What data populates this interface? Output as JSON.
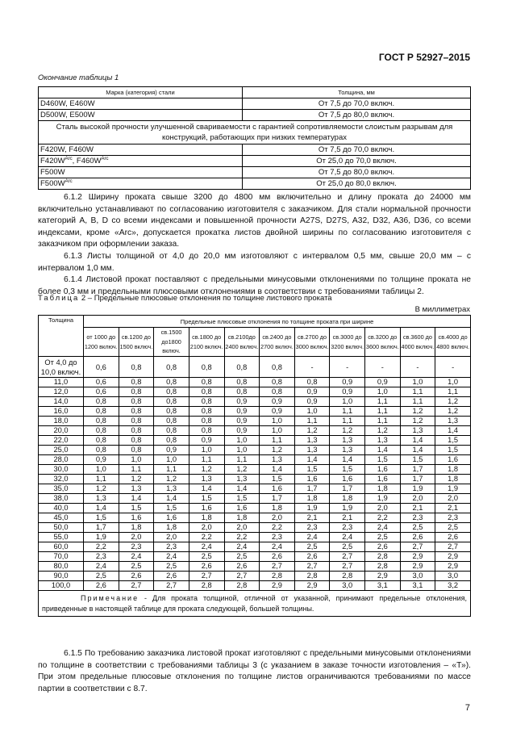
{
  "header": {
    "doc_id": "ГОСТ Р 52927–2015"
  },
  "table1": {
    "caption": "Окончание таблицы 1",
    "headers": [
      "Марка (категория) стали",
      "Толщина, мм"
    ],
    "rows": [
      {
        "grade": "D460W, E460W",
        "thickness": "От 7,5 до 70,0 включ."
      },
      {
        "grade": "D500W, E500W",
        "thickness": "От 7,5 до 80,0 включ."
      }
    ],
    "section": "Сталь высокой прочности улучшенной свариваемости с гарантией сопротивляемости слоистым разрывам для конструкций, работающих при низких температурах",
    "rows2": [
      {
        "grade": "F420W, F460W",
        "thickness": "От 7,5 до 70,0 включ."
      },
      {
        "grade_a": "F420W",
        "sup_a": "Arc",
        "sep": ", ",
        "grade_b": "F460W",
        "sup_b": "Arc",
        "thickness": "От 25,0 до 70,0 включ."
      },
      {
        "grade": "F500W",
        "thickness": "От 7,5 до 80,0 включ."
      },
      {
        "grade": "F500W",
        "sup": "Arc",
        "thickness": "От 25,0 до 80,0 включ."
      }
    ]
  },
  "paragraphs": {
    "p612": "6.1.2 Ширину проката свыше 3200 до 4800 мм включительно и длину проката до 24000 мм включительно устанавливают по согласованию изготовителя с заказчиком. Для стали нормальной прочности категорий A, B, D со всеми индексами и повышенной прочности A27S, D27S, A32, D32, A36, D36, со всеми индексами, кроме «Arc», допускается прокатка листов двойной ширины по согласованию изготовителя с заказчиком при оформлении заказа.",
    "p613": "6.1.3 Листы толщиной от 4,0 до 20,0 мм изготовляют с интервалом 0,5 мм, свыше 20,0 мм – с интервалом 1,0 мм.",
    "p614": "6.1.4 Листовой прокат поставляют с предельными минусовыми отклонениями по толщине проката не более 0,3 мм и предельными плюсовыми отклонениями в соответствии с требованиями таблицы 2.",
    "p615": "6.1.5 По требованию заказчика листовой прокат изготовляют с предельными минусовыми отклонениями по толщине в соответствии с требованиями таблицы 3 (с указанием в заказе точности изготовления – «Т»). При этом предельные плюсовые отклонения по толщине листов ограничиваются требованиями по массе партии в соответствии с 8.7."
  },
  "table2": {
    "caption_label": "Таблица",
    "caption_text": " 2 – Предельные плюсовые отклонения по толщине листового проката",
    "unit": "В миллиметрах",
    "col_thickness": "Толщина",
    "col_group": "Предельные плюсовые отклонения по толщине проката при ширине",
    "widths": [
      "от 1000 до 1200 включ.",
      "св.1200 до 1500 включ.",
      "св.1500 до1800 включ.",
      "св.1800 до 2100 включ.",
      "св.2100до 2400 включ.",
      "св.2400 до 2700 включ.",
      "св.2700 до 3000 включ.",
      "св.3000 до 3200 включ.",
      "св.3200 до 3600 включ.",
      "св.3600 до 4000 включ.",
      "св.4000 до 4800 включ."
    ],
    "rows": [
      [
        "От 4,0 до 10,0 включ.",
        "0,6",
        "0,8",
        "0,8",
        "0,8",
        "0,8",
        "0,8",
        "-",
        "-",
        "-",
        "-",
        "-"
      ],
      [
        "11,0",
        "0,6",
        "0,8",
        "0,8",
        "0,8",
        "0,8",
        "0,8",
        "0,8",
        "0,9",
        "0,9",
        "1,0",
        "1,0"
      ],
      [
        "12,0",
        "0,6",
        "0,8",
        "0,8",
        "0,8",
        "0,8",
        "0,8",
        "0,9",
        "0,9",
        "1,0",
        "1,1",
        "1,1"
      ],
      [
        "14,0",
        "0,8",
        "0,8",
        "0,8",
        "0,8",
        "0,9",
        "0,9",
        "0,9",
        "1,0",
        "1,1",
        "1,1",
        "1,2"
      ],
      [
        "16,0",
        "0,8",
        "0,8",
        "0,8",
        "0,8",
        "0,9",
        "0,9",
        "1,0",
        "1,1",
        "1,1",
        "1,2",
        "1,2"
      ],
      [
        "18,0",
        "0,8",
        "0,8",
        "0,8",
        "0,8",
        "0,9",
        "1,0",
        "1,1",
        "1,1",
        "1,1",
        "1,2",
        "1,3"
      ],
      [
        "20,0",
        "0,8",
        "0,8",
        "0,8",
        "0,8",
        "0,9",
        "1,0",
        "1,2",
        "1,2",
        "1,2",
        "1,3",
        "1,4"
      ],
      [
        "22,0",
        "0,8",
        "0,8",
        "0,8",
        "0,9",
        "1,0",
        "1,1",
        "1,3",
        "1,3",
        "1,3",
        "1,4",
        "1,5"
      ],
      [
        "25,0",
        "0,8",
        "0,8",
        "0,9",
        "1,0",
        "1,0",
        "1,2",
        "1,3",
        "1,3",
        "1,4",
        "1,4",
        "1,5"
      ],
      [
        "28,0",
        "0,9",
        "1,0",
        "1,0",
        "1,1",
        "1,1",
        "1,3",
        "1,4",
        "1,4",
        "1,5",
        "1,5",
        "1,6"
      ],
      [
        "30,0",
        "1,0",
        "1,1",
        "1,1",
        "1,2",
        "1,2",
        "1,4",
        "1,5",
        "1,5",
        "1,6",
        "1,7",
        "1,8"
      ],
      [
        "32,0",
        "1,1",
        "1,2",
        "1,2",
        "1,3",
        "1,3",
        "1,5",
        "1,6",
        "1,6",
        "1,6",
        "1,7",
        "1,8"
      ],
      [
        "35,0",
        "1,2",
        "1,3",
        "1,3",
        "1,4",
        "1,4",
        "1,6",
        "1,7",
        "1,7",
        "1,8",
        "1,9",
        "1,9"
      ],
      [
        "38,0",
        "1,3",
        "1,4",
        "1,4",
        "1,5",
        "1,5",
        "1,7",
        "1,8",
        "1,8",
        "1,9",
        "2,0",
        "2,0"
      ],
      [
        "40,0",
        "1,4",
        "1,5",
        "1,5",
        "1,6",
        "1,6",
        "1,8",
        "1,9",
        "1,9",
        "2,0",
        "2,1",
        "2,1"
      ],
      [
        "45,0",
        "1,5",
        "1,6",
        "1,6",
        "1,8",
        "1,8",
        "2,0",
        "2,1",
        "2,1",
        "2,2",
        "2,3",
        "2,3"
      ],
      [
        "50,0",
        "1,7",
        "1,8",
        "1,8",
        "2,0",
        "2,0",
        "2,2",
        "2,3",
        "2,3",
        "2,4",
        "2,5",
        "2,5"
      ],
      [
        "55,0",
        "1,9",
        "2,0",
        "2,0",
        "2,2",
        "2,2",
        "2,3",
        "2,4",
        "2,4",
        "2,5",
        "2,6",
        "2,6"
      ],
      [
        "60,0",
        "2,2",
        "2,3",
        "2,3",
        "2,4",
        "2,4",
        "2,4",
        "2,5",
        "2,5",
        "2,6",
        "2,7",
        "2,7"
      ],
      [
        "70,0",
        "2,3",
        "2,4",
        "2,4",
        "2,5",
        "2,5",
        "2,6",
        "2,6",
        "2,7",
        "2,8",
        "2,9",
        "2,9"
      ],
      [
        "80,0",
        "2,4",
        "2,5",
        "2,5",
        "2,6",
        "2,6",
        "2,7",
        "2,7",
        "2,7",
        "2,8",
        "2,9",
        "2,9"
      ],
      [
        "90,0",
        "2,5",
        "2,6",
        "2,6",
        "2,7",
        "2,7",
        "2,8",
        "2,8",
        "2,8",
        "2,9",
        "3,0",
        "3,0"
      ],
      [
        "100,0",
        "2,6",
        "2,7",
        "2,7",
        "2,8",
        "2,8",
        "2,9",
        "2,9",
        "3,0",
        "3,1",
        "3,1",
        "3,2"
      ]
    ],
    "note_label": "Примечание",
    "note_text": " - Для проката толщиной, отличной от указанной, принимают предельные отклонения, приведенные в настоящей таблице для проката следующей, большей толщины."
  },
  "page_number": "7"
}
